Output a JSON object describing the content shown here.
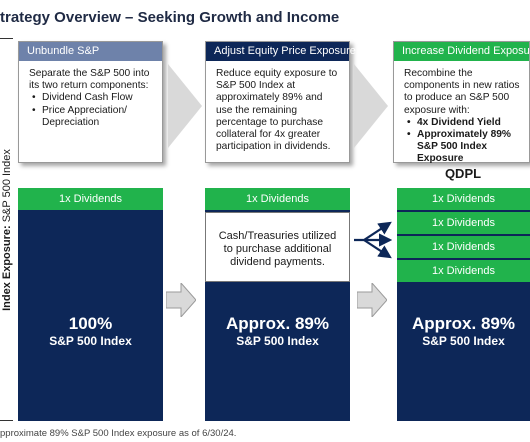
{
  "title": "trategy Overview – Seeking Growth and Income",
  "side_label": {
    "bold": "Index Exposure:",
    "rest": " S&P 500 Index"
  },
  "panels": [
    {
      "header": "Unbundle S&P",
      "header_color": "#6e82aa",
      "body": "Separate the S&P 500 into its two return components:",
      "bullets": [
        "Dividend Cash Flow",
        "Price Appreciation/ Depreciation"
      ]
    },
    {
      "header": "Adjust Equity Price Exposure",
      "header_color": "#0d2758",
      "body": "Reduce equity exposure to S&P 500 Index at approximately 89% and use the remaining percentage to purchase collateral for 4x greater participation in dividends.",
      "bullets": []
    },
    {
      "header": "Increase Dividend Exposure",
      "header_color": "#21b34c",
      "body": "Recombine the components in new ratios to produce an S&P 500 exposure with:",
      "bullets": [
        "4x Dividend Yield",
        "Approximately 89% S&P 500 Index Exposure"
      ]
    }
  ],
  "qdpl_label": "QDPL",
  "columns": [
    {
      "dividend_bands": [
        "1x Dividends"
      ],
      "cash_box": "",
      "main_line1": "100%",
      "main_line2": "S&P 500 Index"
    },
    {
      "dividend_bands": [
        "1x Dividends"
      ],
      "cash_box": "Cash/Treasuries utilized to purchase additional dividend payments.",
      "main_line1": "Approx. 89%",
      "main_line2": "S&P 500 Index"
    },
    {
      "dividend_bands": [
        "1x Dividends",
        "1x Dividends",
        "1x Dividends",
        "1x Dividends"
      ],
      "cash_box": "",
      "main_line1": "Approx. 89%",
      "main_line2": "S&P 500 Index"
    }
  ],
  "footnote": "pproximate 89% S&P 500 Index exposure as of 6/30/24.",
  "colors": {
    "navy": "#0d2758",
    "green": "#21b34c",
    "slate": "#6e82aa",
    "arrow_grey": "#d9d9d9"
  }
}
